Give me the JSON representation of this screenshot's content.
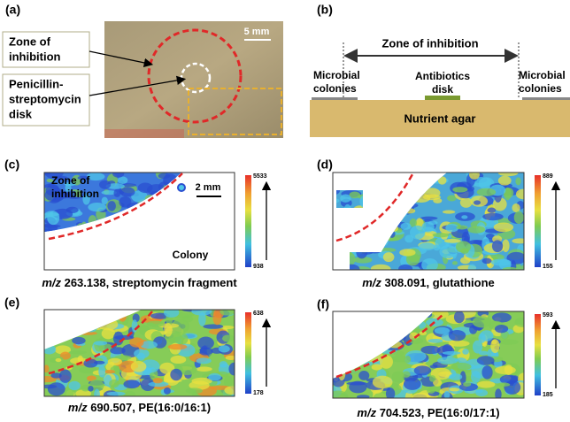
{
  "panel_a": {
    "label": "(a)",
    "scale": "5 mm",
    "zone_callout": [
      "Zone of",
      "inhibition"
    ],
    "disk_callout": [
      "Penicillin-",
      "streptomycin",
      "disk"
    ]
  },
  "panel_b": {
    "label": "(b)",
    "zone": "Zone of inhibition",
    "left_colonies": [
      "Microbial",
      "colonies"
    ],
    "disk": [
      "Antibiotics",
      "disk"
    ],
    "right_colonies": [
      "Microbial",
      "colonies"
    ],
    "agar": "Nutrient agar"
  },
  "panels": [
    {
      "label": "(c)",
      "colorbar_max": "5533",
      "colorbar_min": "938",
      "caption_mz": "m/z",
      "caption_rest": " 263.138, streptomycin fragment",
      "zone": [
        "Zone of",
        "inhibition"
      ],
      "scale": "2 mm",
      "colony": "Colony"
    },
    {
      "label": "(d)",
      "colorbar_max": "889",
      "colorbar_min": "155",
      "caption_mz": "m/z",
      "caption_rest": " 308.091, glutathione"
    },
    {
      "label": "(e)",
      "colorbar_max": "638",
      "colorbar_min": "178",
      "caption_mz": "m/z",
      "caption_rest": " 690.507, PE(16:0/16:1)"
    },
    {
      "label": "(f)",
      "colorbar_max": "593",
      "colorbar_min": "185",
      "caption_mz": "m/z",
      "caption_rest": " 704.523, PE(16:0/17:1)"
    }
  ]
}
